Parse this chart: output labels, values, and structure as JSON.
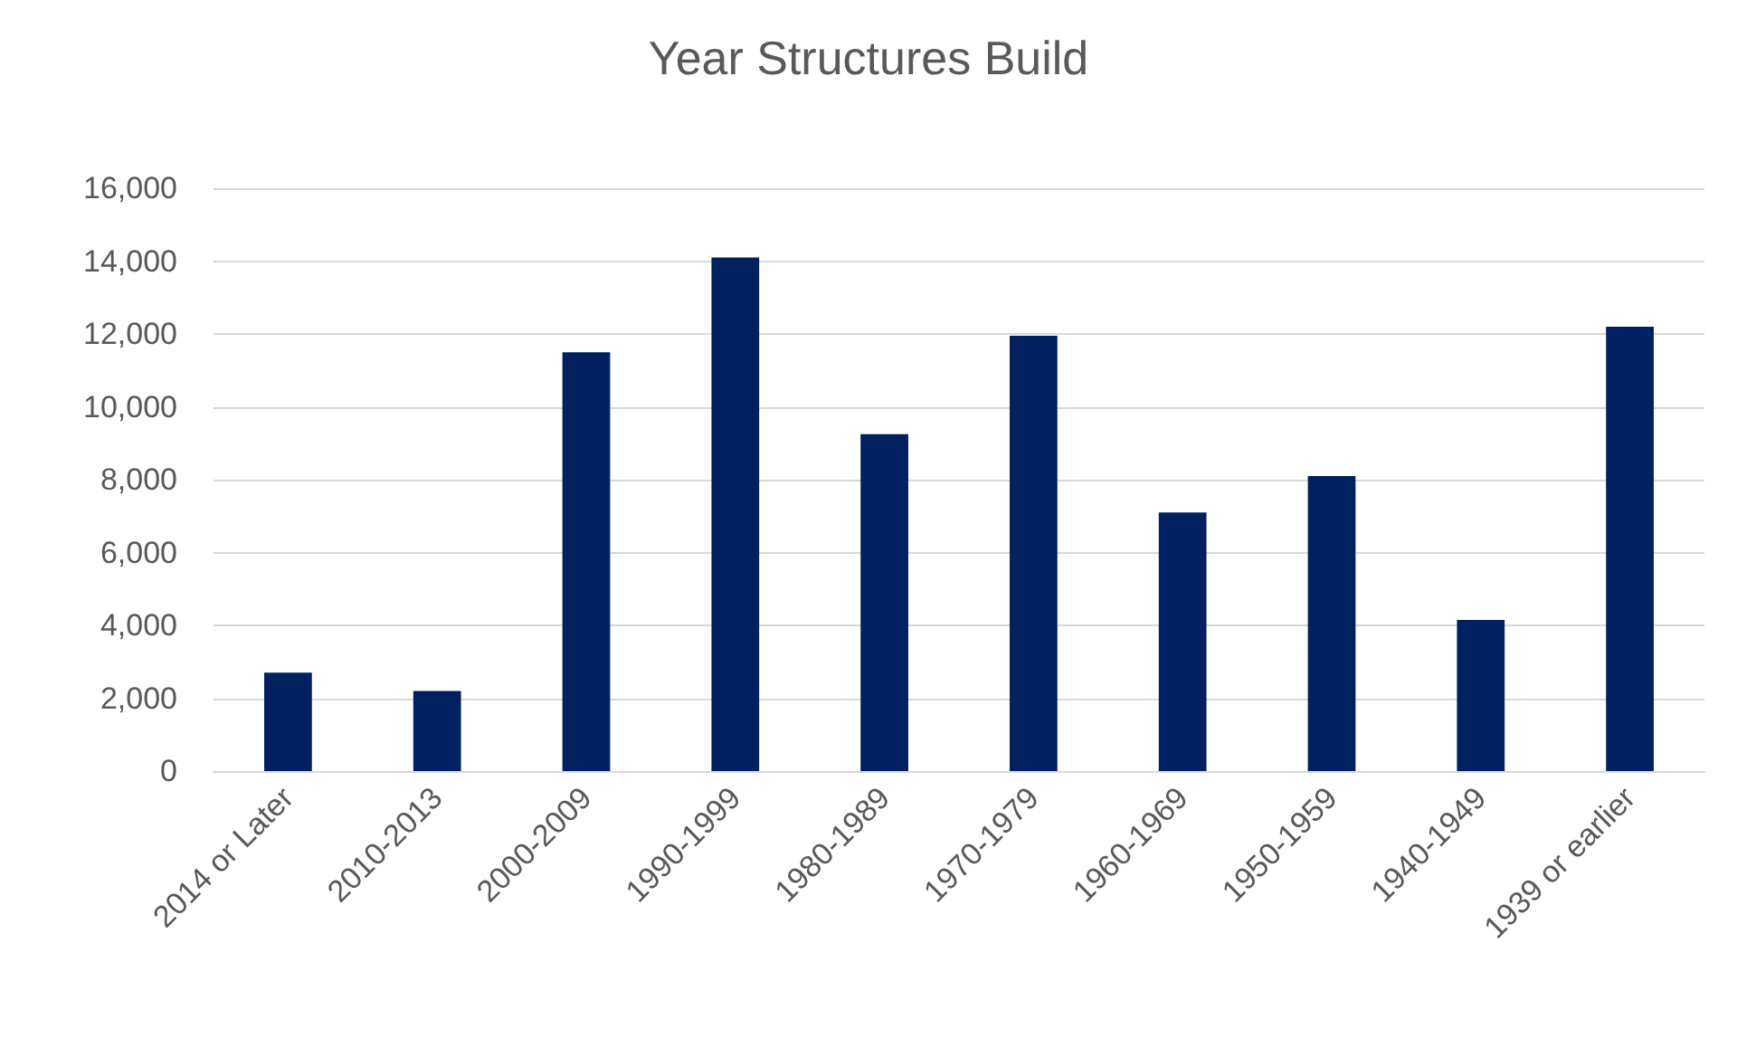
{
  "chart_data": {
    "type": "bar",
    "title": "Year Structures Build",
    "categories": [
      "2014 or Later",
      "2010-2013",
      "2000-2009",
      "1990-1999",
      "1980-1989",
      "1970-1979",
      "1960-1969",
      "1950-1959",
      "1940-1949",
      "1939 or earlier"
    ],
    "values": [
      2700,
      2200,
      11500,
      14100,
      9250,
      11950,
      7100,
      8100,
      4150,
      12200
    ],
    "color": "#002060",
    "ylim": [
      0,
      16000
    ],
    "yticks": [
      0,
      {
        "value": 2000,
        "label": "2,000"
      },
      {
        "value": 4000,
        "label": "4,000"
      },
      {
        "value": 6000,
        "label": "6,000"
      },
      {
        "value": 8000,
        "label": "8,000"
      },
      {
        "value": 10000,
        "label": "10,000"
      },
      {
        "value": 12000,
        "label": "12,000"
      },
      {
        "value": 14000,
        "label": "14,000"
      },
      {
        "value": 16000,
        "label": "16,000"
      }
    ],
    "grid": "y"
  }
}
